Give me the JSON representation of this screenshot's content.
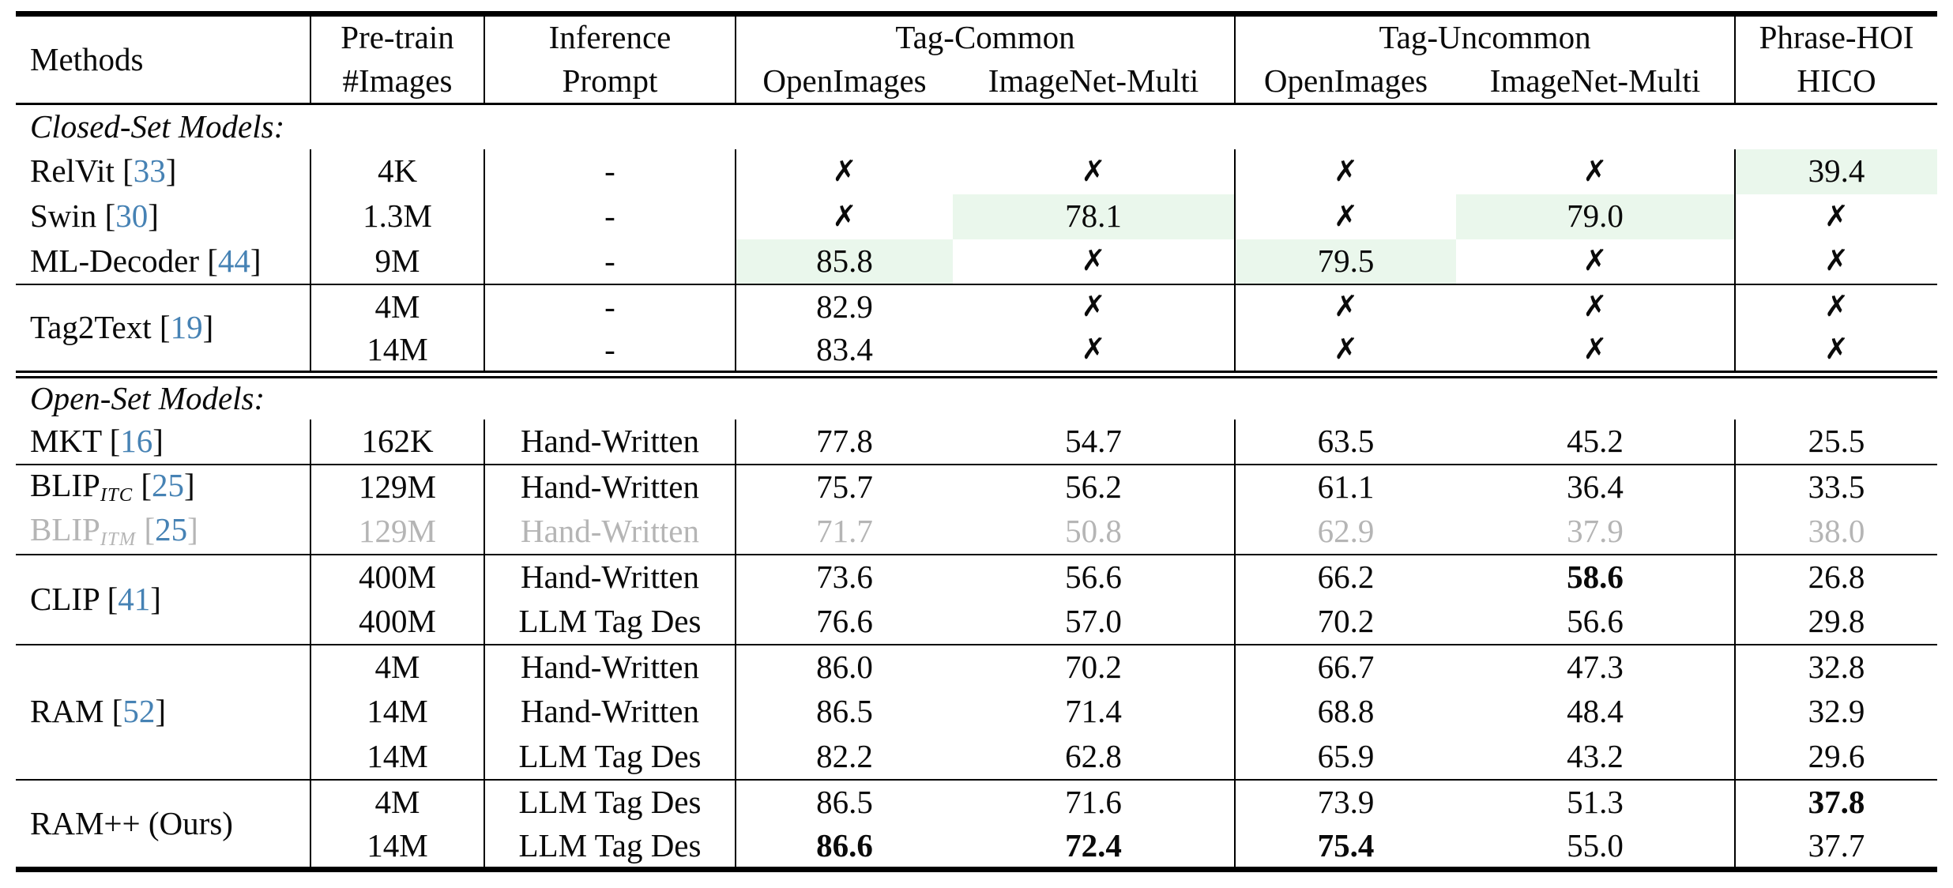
{
  "colors": {
    "highlight_green": "#eaf7ec",
    "citation_blue": "#4682b4",
    "muted_gray": "#b5b5b5",
    "rule_black": "#000000"
  },
  "marks": {
    "unavailable": "✗",
    "no_prompt": "-"
  },
  "header": {
    "methods": "Methods",
    "pretrain": [
      "Pre-train",
      "#Images"
    ],
    "inference": [
      "Inference",
      "Prompt"
    ],
    "groups": [
      {
        "label": "Tag-Common",
        "subs": [
          "OpenImages",
          "ImageNet-Multi"
        ]
      },
      {
        "label": "Tag-Uncommon",
        "subs": [
          "OpenImages",
          "ImageNet-Multi"
        ]
      },
      {
        "label": "Phrase-HOI",
        "subs": [
          "HICO"
        ]
      }
    ]
  },
  "sections": [
    {
      "label": "Closed-Set Models:",
      "blocks": [
        {
          "methods": [
            {
              "name": "RelVit",
              "cite": "33",
              "rows": [
                {
                  "pretrain": "4K",
                  "prompt": "-",
                  "values": [
                    "x",
                    "x",
                    "x",
                    "x",
                    "39.4"
                  ],
                  "highlight": [
                    4
                  ]
                }
              ]
            },
            {
              "name": "Swin",
              "cite": "30",
              "rows": [
                {
                  "pretrain": "1.3M",
                  "prompt": "-",
                  "values": [
                    "x",
                    "78.1",
                    "x",
                    "79.0",
                    "x"
                  ],
                  "highlight": [
                    1,
                    3
                  ]
                }
              ]
            },
            {
              "name": "ML-Decoder",
              "cite": "44",
              "rows": [
                {
                  "pretrain": "9M",
                  "prompt": "-",
                  "values": [
                    "85.8",
                    "x",
                    "79.5",
                    "x",
                    "x"
                  ],
                  "highlight": [
                    0,
                    2
                  ]
                }
              ]
            }
          ]
        },
        {
          "methods": [
            {
              "name": "Tag2Text",
              "cite": "19",
              "rows": [
                {
                  "pretrain": "4M",
                  "prompt": "-",
                  "values": [
                    "82.9",
                    "x",
                    "x",
                    "x",
                    "x"
                  ]
                },
                {
                  "pretrain": "14M",
                  "prompt": "-",
                  "values": [
                    "83.4",
                    "x",
                    "x",
                    "x",
                    "x"
                  ]
                }
              ]
            }
          ]
        }
      ]
    },
    {
      "label": "Open-Set Models:",
      "blocks": [
        {
          "methods": [
            {
              "name": "MKT",
              "cite": "16",
              "rows": [
                {
                  "pretrain": "162K",
                  "prompt": "Hand-Written",
                  "values": [
                    "77.8",
                    "54.7",
                    "63.5",
                    "45.2",
                    "25.5"
                  ]
                }
              ]
            }
          ]
        },
        {
          "methods": [
            {
              "name": "BLIP",
              "sub": "ITC",
              "cite": "25",
              "rows": [
                {
                  "pretrain": "129M",
                  "prompt": "Hand-Written",
                  "values": [
                    "75.7",
                    "56.2",
                    "61.1",
                    "36.4",
                    "33.5"
                  ]
                }
              ]
            },
            {
              "name": "BLIP",
              "sub": "ITM",
              "cite": "25",
              "muted": true,
              "rows": [
                {
                  "pretrain": "129M",
                  "prompt": "Hand-Written",
                  "values": [
                    "71.7",
                    "50.8",
                    "62.9",
                    "37.9",
                    "38.0"
                  ]
                }
              ]
            }
          ]
        },
        {
          "methods": [
            {
              "name": "CLIP",
              "cite": "41",
              "rows": [
                {
                  "pretrain": "400M",
                  "prompt": "Hand-Written",
                  "values": [
                    "73.6",
                    "56.6",
                    "66.2",
                    "58.6",
                    "26.8"
                  ],
                  "bold": [
                    3
                  ]
                },
                {
                  "pretrain": "400M",
                  "prompt": "LLM Tag Des",
                  "values": [
                    "76.6",
                    "57.0",
                    "70.2",
                    "56.6",
                    "29.8"
                  ]
                }
              ]
            }
          ]
        },
        {
          "methods": [
            {
              "name": "RAM",
              "cite": "52",
              "rows": [
                {
                  "pretrain": "4M",
                  "prompt": "Hand-Written",
                  "values": [
                    "86.0",
                    "70.2",
                    "66.7",
                    "47.3",
                    "32.8"
                  ]
                },
                {
                  "pretrain": "14M",
                  "prompt": "Hand-Written",
                  "values": [
                    "86.5",
                    "71.4",
                    "68.8",
                    "48.4",
                    "32.9"
                  ]
                },
                {
                  "pretrain": "14M",
                  "prompt": "LLM Tag Des",
                  "values": [
                    "82.2",
                    "62.8",
                    "65.9",
                    "43.2",
                    "29.6"
                  ]
                }
              ]
            }
          ]
        },
        {
          "methods": [
            {
              "name": "RAM++",
              "suffix": "(Ours)",
              "rows": [
                {
                  "pretrain": "4M",
                  "prompt": "LLM Tag Des",
                  "values": [
                    "86.5",
                    "71.6",
                    "73.9",
                    "51.3",
                    "37.8"
                  ],
                  "bold": [
                    4
                  ]
                },
                {
                  "pretrain": "14M",
                  "prompt": "LLM Tag Des",
                  "values": [
                    "86.6",
                    "72.4",
                    "75.4",
                    "55.0",
                    "37.7"
                  ],
                  "bold": [
                    0,
                    1,
                    2
                  ]
                }
              ]
            }
          ]
        }
      ]
    }
  ]
}
